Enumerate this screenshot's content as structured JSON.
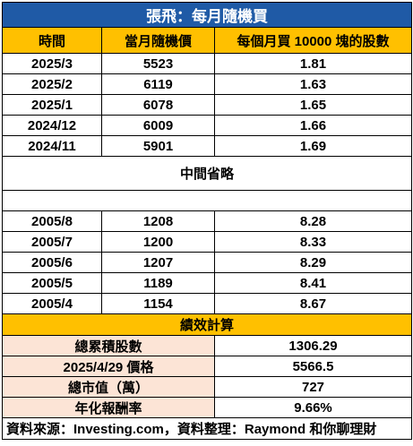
{
  "title": "張飛：每月隨機買",
  "headers": [
    "時間",
    "當月隨機價",
    "每個月買 10000 塊的股數"
  ],
  "recent_rows": [
    {
      "date": "2025/3",
      "price": "5523",
      "shares": "1.81"
    },
    {
      "date": "2025/2",
      "price": "6119",
      "shares": "1.63"
    },
    {
      "date": "2025/1",
      "price": "6078",
      "shares": "1.65"
    },
    {
      "date": "2024/12",
      "price": "6009",
      "shares": "1.66"
    },
    {
      "date": "2024/11",
      "price": "5901",
      "shares": "1.69"
    }
  ],
  "gap_label": "中間省略",
  "early_rows": [
    {
      "date": "2005/8",
      "price": "1208",
      "shares": "8.28"
    },
    {
      "date": "2005/7",
      "price": "1200",
      "shares": "8.33"
    },
    {
      "date": "2005/6",
      "price": "1207",
      "shares": "8.29"
    },
    {
      "date": "2005/5",
      "price": "1189",
      "shares": "8.41"
    },
    {
      "date": "2005/4",
      "price": "1154",
      "shares": "8.67"
    }
  ],
  "summary_title": "績效計算",
  "summary": [
    {
      "label": "總累積股數",
      "value": "1306.29"
    },
    {
      "label": "2025/4/29 價格",
      "value": "5566.5"
    },
    {
      "label": "總市值（萬）",
      "value": "727"
    },
    {
      "label": "年化報酬率",
      "value": "9.66%"
    }
  ],
  "source": "資料來源：Investing.com，資料整理：Raymond 和你聊理財"
}
